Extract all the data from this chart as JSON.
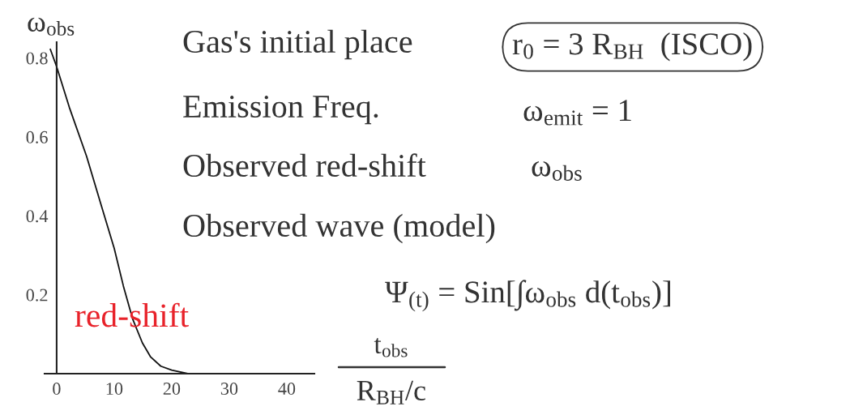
{
  "chart_data": {
    "type": "line",
    "x": [
      -1.1,
      0,
      2.2,
      5.2,
      7.8,
      10,
      11.6,
      13.2,
      14.9,
      16.3,
      18.1,
      20,
      22.8
    ],
    "series": [
      {
        "color": "#111111",
        "values": [
          0.822,
          0.778,
          0.675,
          0.551,
          0.424,
          0.318,
          0.222,
          0.139,
          0.078,
          0.043,
          0.019,
          0.009,
          0
        ]
      }
    ],
    "xlim": [
      -2.1,
      44.8
    ],
    "ylim": [
      0,
      0.84
    ],
    "xticks": [
      0,
      10,
      20,
      30,
      40
    ],
    "yticks": [
      0.2,
      0.4,
      0.6,
      0.8
    ],
    "ylabel": "ω$_{obs}$",
    "xlabel": "t$_{obs}$\nR$_{BH}$/c",
    "grid": false,
    "marker": "none",
    "line_style": "solid",
    "annotations": [
      "Gas's initial place",
      "r$_{0}$ = 3 R$_{BH}$  (ISCO)",
      "Emission Freq.",
      "ω$_{emit}$ = 1",
      "Observed red-shift",
      "ω$_{obs}$",
      "Observed wave (model)",
      "Ψ$_{(t)}$ = Sin[∫ω$_{obs}$ d(t$_{obs}$)]",
      "red-shift"
    ]
  }
}
